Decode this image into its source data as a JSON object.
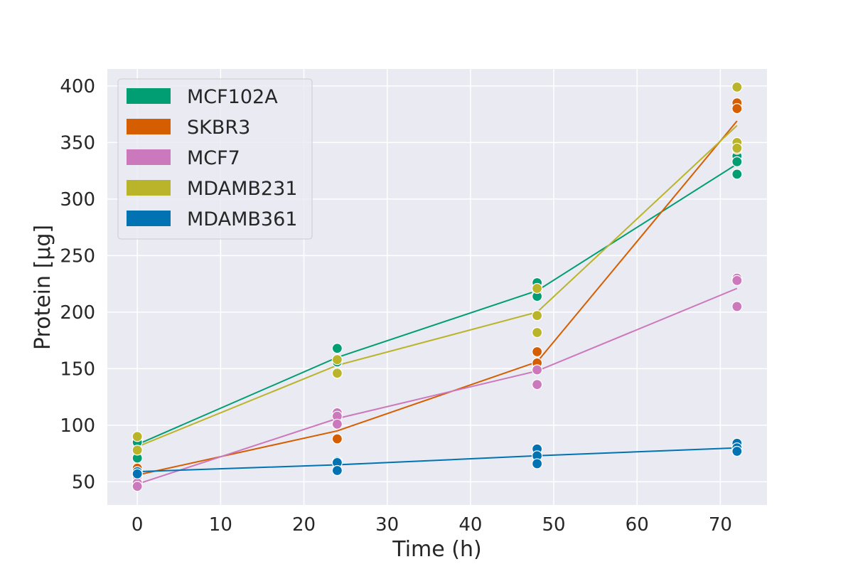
{
  "chart_data": {
    "type": "scatter",
    "xlabel": "Time (h)",
    "ylabel": "Protein [μg]",
    "xlim": [
      -3.6,
      75.6
    ],
    "ylim": [
      29.5,
      415
    ],
    "xticks": [
      0,
      10,
      20,
      30,
      40,
      50,
      60,
      70
    ],
    "yticks": [
      50,
      100,
      150,
      200,
      250,
      300,
      350,
      400
    ],
    "grid": true,
    "legend_position": "top-left",
    "series": [
      {
        "name": "MCF102A",
        "color": "#029e73",
        "points": [
          [
            0,
            87
          ],
          [
            0,
            85
          ],
          [
            0,
            71
          ],
          [
            24,
            168
          ],
          [
            24,
            157
          ],
          [
            24,
            156
          ],
          [
            48,
            226
          ],
          [
            48,
            219
          ],
          [
            48,
            214
          ],
          [
            72,
            338
          ],
          [
            72,
            333
          ],
          [
            72,
            322
          ]
        ],
        "line": [
          [
            0,
            83
          ],
          [
            24,
            160
          ],
          [
            48,
            219
          ],
          [
            72,
            331
          ]
        ]
      },
      {
        "name": "SKBR3",
        "color": "#d55e00",
        "points": [
          [
            0,
            62
          ],
          [
            0,
            56
          ],
          [
            0,
            51
          ],
          [
            24,
            101
          ],
          [
            24,
            88
          ],
          [
            48,
            165
          ],
          [
            48,
            155
          ],
          [
            48,
            149
          ],
          [
            72,
            385
          ],
          [
            72,
            380
          ],
          [
            72,
            344
          ]
        ],
        "line": [
          [
            0,
            56
          ],
          [
            24,
            95
          ],
          [
            48,
            156
          ],
          [
            72,
            369
          ]
        ]
      },
      {
        "name": "MCF7",
        "color": "#cc78bc",
        "points": [
          [
            0,
            55
          ],
          [
            0,
            49
          ],
          [
            0,
            46
          ],
          [
            24,
            111
          ],
          [
            24,
            108
          ],
          [
            24,
            101
          ],
          [
            48,
            149
          ],
          [
            48,
            136
          ],
          [
            72,
            230
          ],
          [
            72,
            228
          ],
          [
            72,
            205
          ]
        ],
        "line": [
          [
            0,
            48
          ],
          [
            24,
            106
          ],
          [
            48,
            148
          ],
          [
            72,
            221
          ]
        ]
      },
      {
        "name": "MDAMB231",
        "color": "#bab42a",
        "points": [
          [
            0,
            90
          ],
          [
            0,
            78
          ],
          [
            24,
            158
          ],
          [
            24,
            146
          ],
          [
            48,
            221
          ],
          [
            48,
            197
          ],
          [
            48,
            182
          ],
          [
            72,
            399
          ],
          [
            72,
            350
          ],
          [
            72,
            345
          ]
        ],
        "line": [
          [
            0,
            81
          ],
          [
            24,
            153
          ],
          [
            48,
            200
          ],
          [
            72,
            365
          ]
        ]
      },
      {
        "name": "MDAMB361",
        "color": "#0173b2",
        "points": [
          [
            0,
            59
          ],
          [
            0,
            57
          ],
          [
            24,
            68
          ],
          [
            24,
            67
          ],
          [
            24,
            60
          ],
          [
            48,
            79
          ],
          [
            48,
            73
          ],
          [
            48,
            66
          ],
          [
            72,
            84
          ],
          [
            72,
            80
          ],
          [
            72,
            77
          ]
        ],
        "line": [
          [
            0,
            59
          ],
          [
            24,
            65
          ],
          [
            48,
            73
          ],
          [
            72,
            80
          ]
        ]
      }
    ]
  }
}
